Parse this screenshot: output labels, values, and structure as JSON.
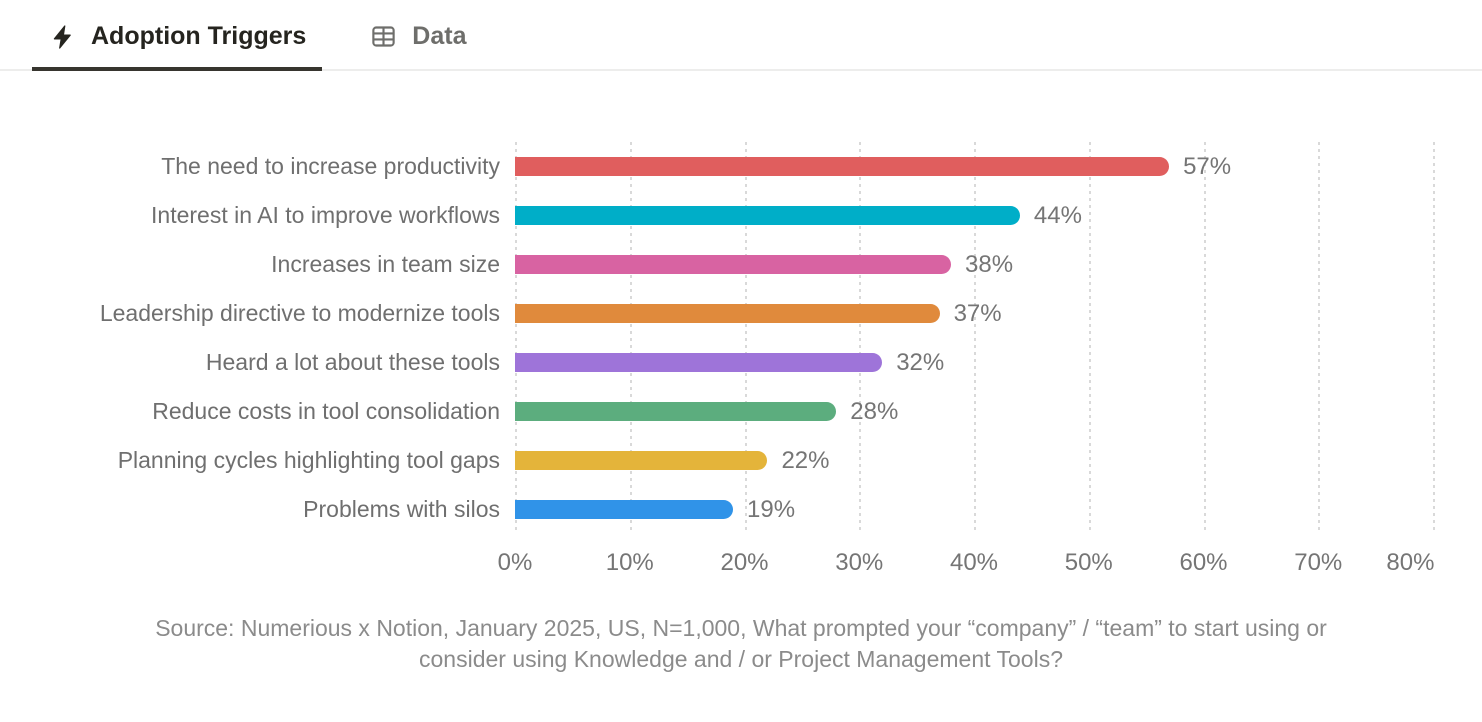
{
  "tabs": [
    {
      "label": "Adoption Triggers",
      "icon": "lightning-bolt-icon",
      "active": true
    },
    {
      "label": "Data",
      "icon": "table-icon",
      "active": false
    }
  ],
  "chart_data": {
    "type": "bar",
    "orientation": "horizontal",
    "title": "Adoption Triggers",
    "xlim": [
      0,
      80
    ],
    "xmax": 80,
    "grid": "dotted-vertical",
    "legend": "none",
    "tick_labels": [
      "0%",
      "10%",
      "20%",
      "30%",
      "40%",
      "50%",
      "60%",
      "70%",
      "80%"
    ],
    "rows": [
      {
        "label": "The need to increase productivity",
        "value": 57,
        "value_label": "57%",
        "color": "#E05E5E"
      },
      {
        "label": "Interest in AI to improve workflows",
        "value": 44,
        "value_label": "44%",
        "color": "#00AEC8"
      },
      {
        "label": "Increases in team size",
        "value": 38,
        "value_label": "38%",
        "color": "#D863A2"
      },
      {
        "label": "Leadership directive to modernize tools",
        "value": 37,
        "value_label": "37%",
        "color": "#E08A3C"
      },
      {
        "label": "Heard a lot about these tools",
        "value": 32,
        "value_label": "32%",
        "color": "#9E74D9"
      },
      {
        "label": "Reduce costs in tool consolidation",
        "value": 28,
        "value_label": "28%",
        "color": "#5CAD7E"
      },
      {
        "label": "Planning cycles highlighting tool gaps",
        "value": 22,
        "value_label": "22%",
        "color": "#E4B43A"
      },
      {
        "label": "Problems with silos",
        "value": 19,
        "value_label": "19%",
        "color": "#3093E8"
      }
    ]
  },
  "source": {
    "line1": "Source: Numerious x Notion, January 2025, US, N=1,000, What prompted your “company” / “team” to start using or",
    "line2": "consider using Knowledge and / or Project Management Tools?"
  },
  "colors": {
    "active_tab_text": "#25241f",
    "inactive_tab_text": "#6e6e6b",
    "active_tab_underline": "#37352f",
    "tabbar_border": "#ededec",
    "gridline": "#d9d9d9",
    "category_label": "#6f6f6f",
    "value_label": "#757575",
    "source_text": "#8b8b8b"
  }
}
